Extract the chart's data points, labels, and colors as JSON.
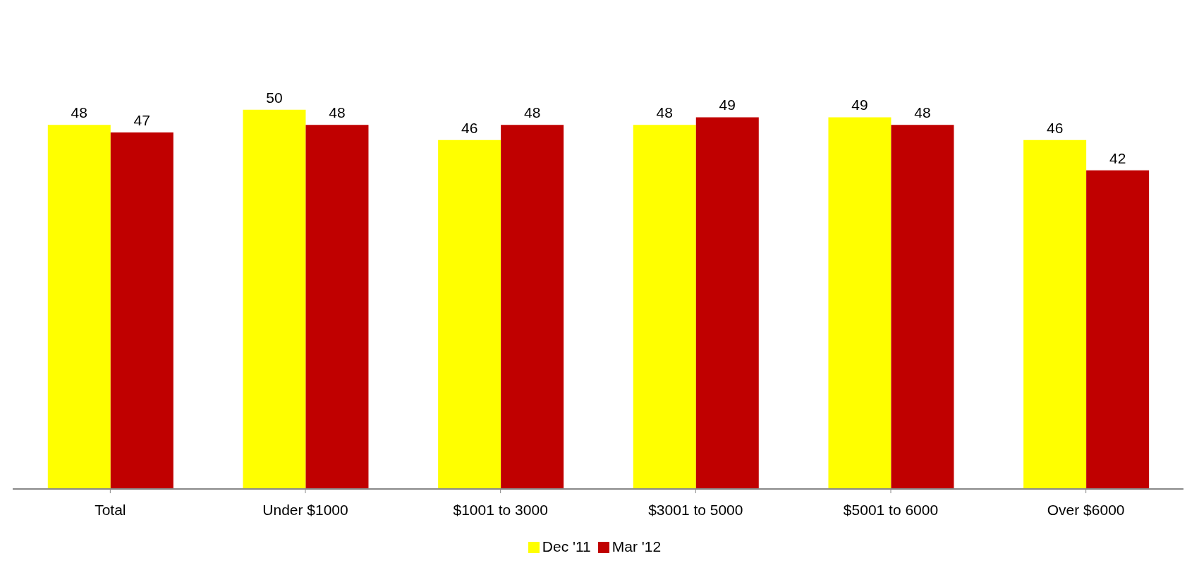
{
  "chart_data": {
    "type": "bar",
    "categories": [
      "Total",
      "Under $1000",
      "$1001 to 3000",
      "$3001 to 5000",
      "$5001 to 6000",
      "Over $6000"
    ],
    "series": [
      {
        "name": "Dec '11",
        "color": "#ffff00",
        "values": [
          48,
          50,
          46,
          48,
          49,
          46
        ]
      },
      {
        "name": "Mar '12",
        "color": "#c00000",
        "values": [
          47,
          48,
          48,
          49,
          48,
          42
        ]
      }
    ],
    "data_labels": true,
    "legend": "bottom",
    "grid": false
  }
}
